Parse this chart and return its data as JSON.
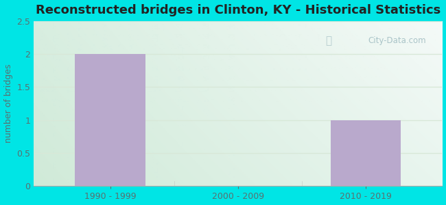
{
  "title": "Reconstructed bridges in Clinton, KY - Historical Statistics",
  "categories": [
    "1990 - 1999",
    "2000 - 2009",
    "2010 - 2019"
  ],
  "values": [
    2,
    0,
    1
  ],
  "bar_color": "#b9a9cc",
  "ylabel": "number of bridges",
  "ylim": [
    0,
    2.5
  ],
  "yticks": [
    0,
    0.5,
    1,
    1.5,
    2,
    2.5
  ],
  "bg_outer": "#00e5e5",
  "bg_plot_topleft": "#d8f0e0",
  "bg_plot_topright": "#f0f8ff",
  "bg_plot_bottomleft": "#d8eed8",
  "bg_plot_bottomright": "#eef8ee",
  "grid_color": "#d8e8d8",
  "title_color": "#222222",
  "axis_label_color": "#5a7070",
  "tick_label_color": "#5a7070",
  "watermark_text": "City-Data.com",
  "watermark_color": "#aac4c8",
  "title_fontsize": 13,
  "ylabel_fontsize": 9,
  "tick_fontsize": 9,
  "bar_width": 0.55
}
